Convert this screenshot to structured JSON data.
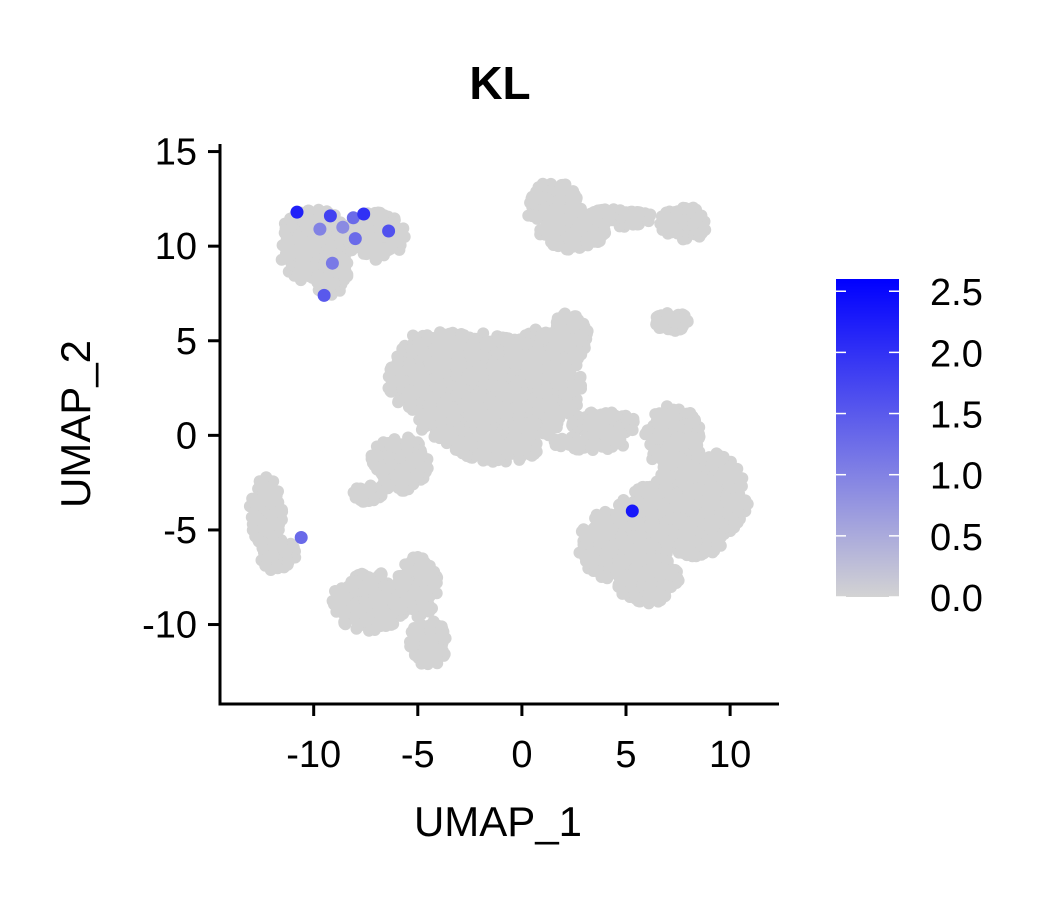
{
  "chart_data": {
    "type": "scatter",
    "title": "KL",
    "xlabel": "UMAP_1",
    "ylabel": "UMAP_2",
    "xlim": [
      -14.5,
      12.3
    ],
    "ylim": [
      -14.2,
      15.4
    ],
    "xticks": [
      -10,
      -5,
      0,
      5,
      10
    ],
    "xtick_labels": [
      "-10",
      "-5",
      "0",
      "5",
      "10"
    ],
    "yticks": [
      -10,
      -5,
      0,
      5,
      10,
      15
    ],
    "ytick_labels": [
      "-10",
      "-5",
      "0",
      "5",
      "10",
      "15"
    ],
    "legend": {
      "placement": "right",
      "min": 0.0,
      "max": 2.6,
      "low_color": "#d3d3d3",
      "high_color": "#0000ff",
      "ticks": [
        0.0,
        0.5,
        1.0,
        1.5,
        2.0,
        2.5
      ],
      "tick_labels": [
        "0.0",
        "0.5",
        "1.0",
        "1.5",
        "2.0",
        "2.5"
      ]
    },
    "background_color": "#d3d3d3",
    "clusters": [
      {
        "cx": -10.0,
        "cy": 10.0,
        "rx": 1.8,
        "ry": 2.0
      },
      {
        "cx": -7.0,
        "cy": 10.5,
        "rx": 1.5,
        "ry": 1.3
      },
      {
        "cx": -9.2,
        "cy": 8.6,
        "rx": 0.9,
        "ry": 1.2
      },
      {
        "cx": 1.5,
        "cy": 12.2,
        "rx": 1.4,
        "ry": 1.2
      },
      {
        "cx": 4.5,
        "cy": 11.5,
        "rx": 1.8,
        "ry": 0.5
      },
      {
        "cx": 7.8,
        "cy": 11.2,
        "rx": 1.2,
        "ry": 0.9
      },
      {
        "cx": 2.4,
        "cy": 10.7,
        "rx": 1.6,
        "ry": 0.9
      },
      {
        "cx": 2.3,
        "cy": 5.2,
        "rx": 0.9,
        "ry": 1.3
      },
      {
        "cx": 7.2,
        "cy": 6.0,
        "rx": 0.9,
        "ry": 0.5
      },
      {
        "cx": -2.5,
        "cy": 3.0,
        "rx": 4.0,
        "ry": 2.5
      },
      {
        "cx": -1.5,
        "cy": 0.8,
        "rx": 3.5,
        "ry": 1.6
      },
      {
        "cx": 0.6,
        "cy": 2.8,
        "rx": 2.3,
        "ry": 2.8
      },
      {
        "cx": -4.3,
        "cy": 4.2,
        "rx": 1.5,
        "ry": 1.4
      },
      {
        "cx": -5.9,
        "cy": -1.5,
        "rx": 1.4,
        "ry": 1.5
      },
      {
        "cx": -7.4,
        "cy": -3.1,
        "rx": 0.7,
        "ry": 0.5
      },
      {
        "cx": -1.2,
        "cy": -0.8,
        "rx": 2.0,
        "ry": 0.6
      },
      {
        "cx": 4.0,
        "cy": 0.6,
        "rx": 1.6,
        "ry": 0.7
      },
      {
        "cx": 3.2,
        "cy": -0.4,
        "rx": 1.8,
        "ry": 0.4
      },
      {
        "cx": 7.3,
        "cy": -0.2,
        "rx": 1.4,
        "ry": 1.8
      },
      {
        "cx": 8.6,
        "cy": -3.2,
        "rx": 2.3,
        "ry": 2.4
      },
      {
        "cx": 6.4,
        "cy": -4.6,
        "rx": 2.0,
        "ry": 2.0
      },
      {
        "cx": 4.3,
        "cy": -5.8,
        "rx": 1.6,
        "ry": 1.8
      },
      {
        "cx": 6.0,
        "cy": -7.6,
        "rx": 1.6,
        "ry": 1.3
      },
      {
        "cx": 8.3,
        "cy": -5.4,
        "rx": 1.4,
        "ry": 1.0
      },
      {
        "cx": -12.3,
        "cy": -4.0,
        "rx": 0.8,
        "ry": 1.9
      },
      {
        "cx": -11.7,
        "cy": -6.3,
        "rx": 0.9,
        "ry": 0.9
      },
      {
        "cx": -7.3,
        "cy": -8.8,
        "rx": 1.8,
        "ry": 1.6
      },
      {
        "cx": -5.0,
        "cy": -8.0,
        "rx": 1.0,
        "ry": 1.6
      },
      {
        "cx": -4.5,
        "cy": -11.0,
        "rx": 0.9,
        "ry": 1.3
      }
    ],
    "expressing_points": [
      {
        "x": -8.1,
        "y": 11.5,
        "value": 1.3
      },
      {
        "x": -8.0,
        "y": 10.4,
        "value": 1.3
      },
      {
        "x": -9.2,
        "y": 11.6,
        "value": 1.8
      },
      {
        "x": -7.6,
        "y": 11.7,
        "value": 2.0
      },
      {
        "x": -6.4,
        "y": 10.8,
        "value": 1.6
      },
      {
        "x": -9.7,
        "y": 10.9,
        "value": 1.0
      },
      {
        "x": -8.6,
        "y": 11.0,
        "value": 0.9
      },
      {
        "x": -9.1,
        "y": 9.1,
        "value": 1.1
      },
      {
        "x": -9.5,
        "y": 7.4,
        "value": 1.5
      },
      {
        "x": -10.8,
        "y": 11.8,
        "value": 2.2
      },
      {
        "x": -10.6,
        "y": -5.4,
        "value": 1.3
      },
      {
        "x": 5.3,
        "y": -4.0,
        "value": 2.3
      }
    ]
  }
}
